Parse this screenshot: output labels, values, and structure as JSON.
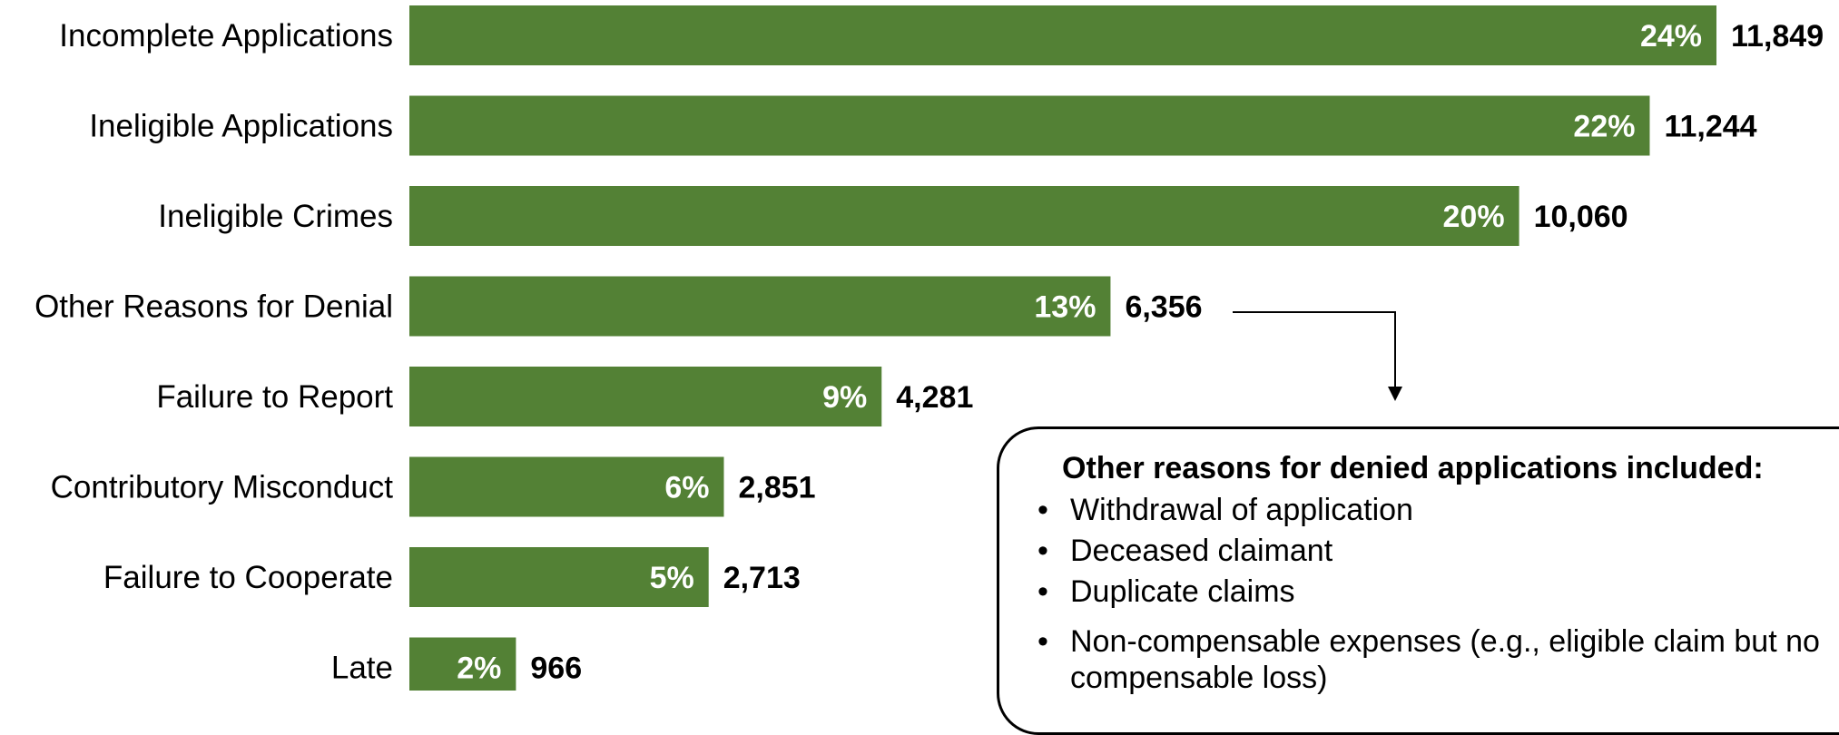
{
  "chart_data": {
    "type": "bar",
    "orientation": "horizontal",
    "categories": [
      "Incomplete Applications",
      "Ineligible Applications",
      "Ineligible Crimes",
      "Other Reasons for Denial",
      "Failure to Report",
      "Contributory Misconduct",
      "Failure to Cooperate",
      "Late"
    ],
    "values": [
      11849,
      11244,
      10060,
      6356,
      4281,
      2851,
      2713,
      966
    ],
    "value_labels": [
      "11,849",
      "11,244",
      "10,060",
      "6,356",
      "4,281",
      "2,851",
      "2,713",
      "966"
    ],
    "percent_labels": [
      "24%",
      "22%",
      "20%",
      "13%",
      "9%",
      "6%",
      "5%",
      "2%"
    ],
    "bar_color": "#538135",
    "title": "",
    "xlabel": "",
    "ylabel": "",
    "grid": false
  },
  "note": {
    "title": "Other reasons for denied applications included:",
    "items": [
      "Withdrawal of application",
      "Deceased claimant",
      "Duplicate claims",
      "Non-compensable expenses (e.g., eligible claim but no compensable loss)"
    ]
  }
}
